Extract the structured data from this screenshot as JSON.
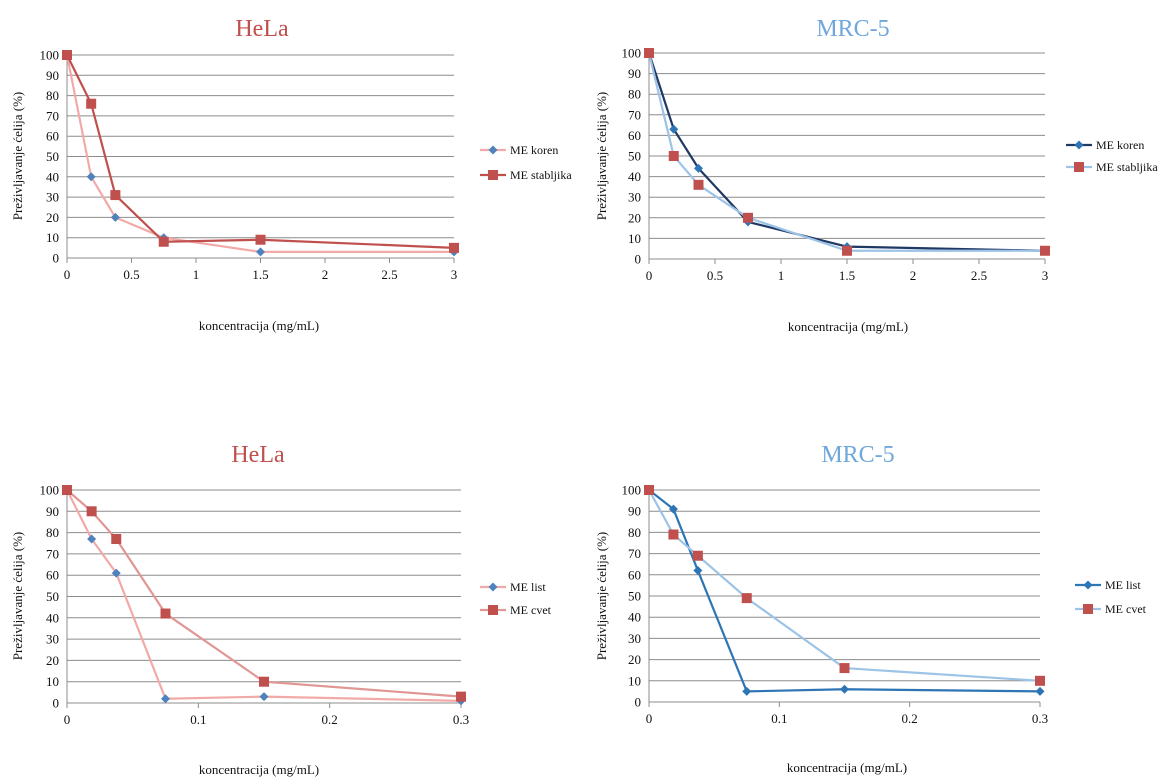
{
  "chart_data": [
    {
      "type": "line",
      "title": "HeLa",
      "title_color": "#c0504d",
      "xlabel": "koncentracija (mg/mL)",
      "ylabel": "Preživljavanje ćelija (%)",
      "xlim": [
        0,
        3
      ],
      "ylim": [
        0,
        100
      ],
      "xticks": [
        "0",
        "0.5",
        "1",
        "1.5",
        "2",
        "2.5",
        "3"
      ],
      "xtick_values": [
        0,
        0.5,
        1,
        1.5,
        2,
        2.5,
        3
      ],
      "yticks": [
        "0",
        "10",
        "20",
        "30",
        "40",
        "50",
        "60",
        "70",
        "80",
        "90",
        "100"
      ],
      "legend": "right",
      "grid": "horizontal",
      "series": [
        {
          "name": "ME koren",
          "line_color": "#f2aaa8",
          "marker": "diamond",
          "marker_color": "#4f81bd",
          "x": [
            0,
            0.1875,
            0.375,
            0.75,
            1.5,
            3
          ],
          "y": [
            100,
            40,
            20,
            10,
            3,
            3
          ]
        },
        {
          "name": "ME stabljika",
          "line_color": "#c0504d",
          "marker": "square",
          "marker_color": "#c0504d",
          "x": [
            0,
            0.1875,
            0.375,
            0.75,
            1.5,
            3
          ],
          "y": [
            100,
            76,
            31,
            8,
            9,
            5
          ]
        }
      ]
    },
    {
      "type": "line",
      "title": "MRC-5",
      "title_color": "#6fa8dc",
      "xlabel": "koncentracija (mg/mL)",
      "ylabel": "Preživljavanje ćelija (%)",
      "xlim": [
        0,
        3
      ],
      "ylim": [
        0,
        100
      ],
      "xticks": [
        "0",
        "0.5",
        "1",
        "1.5",
        "2",
        "2.5",
        "3"
      ],
      "xtick_values": [
        0,
        0.5,
        1,
        1.5,
        2,
        2.5,
        3
      ],
      "yticks": [
        "0",
        "10",
        "20",
        "30",
        "40",
        "50",
        "60",
        "70",
        "80",
        "90",
        "100"
      ],
      "legend": "right",
      "grid": "horizontal",
      "series": [
        {
          "name": "ME koren",
          "line_color": "#1f3864",
          "marker": "diamond",
          "marker_color": "#2e75b6",
          "x": [
            0,
            0.1875,
            0.375,
            0.75,
            1.5,
            3
          ],
          "y": [
            100,
            63,
            44,
            18,
            6,
            4
          ]
        },
        {
          "name": "ME stabljika",
          "line_color": "#9dc3e6",
          "marker": "square",
          "marker_color": "#c0504d",
          "x": [
            0,
            0.1875,
            0.375,
            0.75,
            1.5,
            3
          ],
          "y": [
            100,
            50,
            36,
            20,
            4,
            4
          ]
        }
      ]
    },
    {
      "type": "line",
      "title": "HeLa",
      "title_color": "#c0504d",
      "xlabel": "koncentracija (mg/mL)",
      "ylabel": "Preživljavanje ćelija (%)",
      "xlim": [
        0,
        0.3
      ],
      "ylim": [
        0,
        100
      ],
      "xticks": [
        "0",
        "0.1",
        "0.2",
        "0.3"
      ],
      "xtick_values": [
        0,
        0.1,
        0.2,
        0.3
      ],
      "yticks": [
        "0",
        "10",
        "20",
        "30",
        "40",
        "50",
        "60",
        "70",
        "80",
        "90",
        "100"
      ],
      "legend": "right",
      "grid": "horizontal",
      "series": [
        {
          "name": "ME list",
          "line_color": "#f2aaa8",
          "marker": "diamond",
          "marker_color": "#4f81bd",
          "x": [
            0,
            0.01875,
            0.0375,
            0.075,
            0.15,
            0.3
          ],
          "y": [
            100,
            77,
            61,
            2,
            3,
            1
          ]
        },
        {
          "name": "ME cvet",
          "line_color": "#e09694",
          "marker": "square",
          "marker_color": "#c0504d",
          "x": [
            0,
            0.01875,
            0.0375,
            0.075,
            0.15,
            0.3
          ],
          "y": [
            100,
            90,
            77,
            42,
            10,
            3
          ]
        }
      ]
    },
    {
      "type": "line",
      "title": "MRC-5",
      "title_color": "#6fa8dc",
      "xlabel": "koncentracija (mg/mL)",
      "ylabel": "Preživljavanje ćelija (%)",
      "xlim": [
        0,
        0.3
      ],
      "ylim": [
        0,
        100
      ],
      "xticks": [
        "0",
        "0.1",
        "0.2",
        "0.3"
      ],
      "xtick_values": [
        0,
        0.1,
        0.2,
        0.3
      ],
      "yticks": [
        "0",
        "10",
        "20",
        "30",
        "40",
        "50",
        "60",
        "70",
        "80",
        "90",
        "100"
      ],
      "legend": "right",
      "grid": "horizontal",
      "series": [
        {
          "name": "ME list",
          "line_color": "#2e75b6",
          "marker": "diamond",
          "marker_color": "#2e75b6",
          "x": [
            0,
            0.01875,
            0.0375,
            0.075,
            0.15,
            0.3
          ],
          "y": [
            100,
            91,
            62,
            5,
            6,
            5
          ]
        },
        {
          "name": "ME cvet",
          "line_color": "#9dc3e6",
          "marker": "square",
          "marker_color": "#c0504d",
          "x": [
            0,
            0.01875,
            0.0375,
            0.075,
            0.15,
            0.3
          ],
          "y": [
            100,
            79,
            69,
            49,
            16,
            10
          ]
        }
      ]
    }
  ]
}
